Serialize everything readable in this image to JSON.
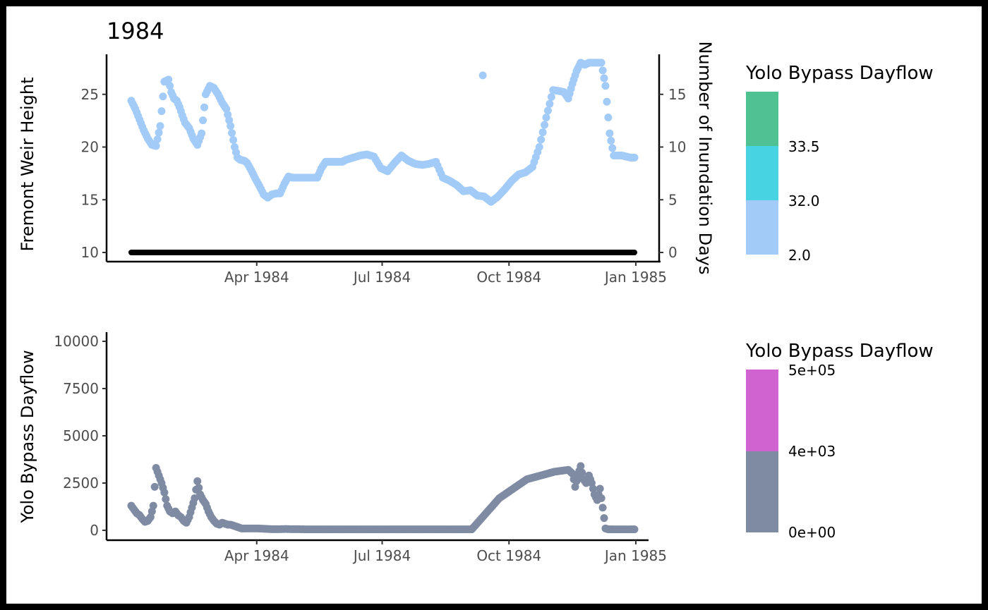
{
  "title": "1984",
  "chart_data": [
    {
      "type": "scatter",
      "ylabel": "Fremont Weir Height",
      "y2label": "Number of Inundation Days",
      "xlim": [
        "1984-01-01",
        "1984-12-31"
      ],
      "x_ticks": [
        "Apr 1984",
        "Jul 1984",
        "Oct 1984",
        "Jan 1985"
      ],
      "ylim": [
        10,
        28
      ],
      "y_ticks": [
        "10",
        "15",
        "20",
        "25"
      ],
      "y2lim": [
        0,
        18
      ],
      "y2_ticks": [
        "0",
        "5",
        "10",
        "15"
      ],
      "colors": {
        "points": "#a3cbf7",
        "inundation": "#000000"
      },
      "series": [
        {
          "role": "weir_height",
          "x": [
            "1984-01-01",
            "1984-01-04",
            "1984-01-07",
            "1984-01-10",
            "1984-01-13",
            "1984-01-16",
            "1984-01-19",
            "1984-01-22",
            "1984-01-25",
            "1984-01-28",
            "1984-01-30",
            "1984-02-01",
            "1984-02-03",
            "1984-02-05",
            "1984-02-07",
            "1984-02-09",
            "1984-02-12",
            "1984-02-15",
            "1984-02-18",
            "1984-02-21",
            "1984-02-24",
            "1984-02-27",
            "1984-03-01",
            "1984-03-04",
            "1984-03-07",
            "1984-03-10",
            "1984-03-13",
            "1984-03-16",
            "1984-03-18",
            "1984-03-20",
            "1984-03-23",
            "1984-03-25",
            "1984-03-28",
            "1984-03-31",
            "1984-04-03",
            "1984-04-06",
            "1984-04-09",
            "1984-04-12",
            "1984-04-15",
            "1984-04-18",
            "1984-04-21",
            "1984-04-24",
            "1984-04-27",
            "1984-04-30",
            "1984-05-03",
            "1984-05-06",
            "1984-05-09",
            "1984-05-12",
            "1984-05-15",
            "1984-05-18",
            "1984-05-21",
            "1984-05-24",
            "1984-05-27",
            "1984-05-30",
            "1984-06-02",
            "1984-06-05",
            "1984-06-10",
            "1984-06-15",
            "1984-06-20",
            "1984-06-25",
            "1984-06-30",
            "1984-07-05",
            "1984-07-10",
            "1984-07-15",
            "1984-07-20",
            "1984-07-25",
            "1984-07-30",
            "1984-08-04",
            "1984-08-09",
            "1984-08-14",
            "1984-08-19",
            "1984-08-24",
            "1984-08-29",
            "1984-09-03",
            "1984-09-08",
            "1984-09-13",
            "1984-09-18",
            "1984-09-23",
            "1984-09-28",
            "1984-10-03",
            "1984-10-08",
            "1984-10-13",
            "1984-10-18",
            "1984-10-23",
            "1984-10-28",
            "1984-11-02",
            "1984-11-07",
            "1984-11-10",
            "1984-11-13",
            "1984-11-16",
            "1984-11-19",
            "1984-11-22",
            "1984-11-25",
            "1984-11-28",
            "1984-12-01",
            "1984-12-04",
            "1984-12-07",
            "1984-12-10",
            "1984-12-13",
            "1984-12-16",
            "1984-12-19",
            "1984-12-22",
            "1984-12-25",
            "1984-12-28",
            "1984-12-31"
          ],
          "y": [
            24.4,
            23.6,
            22.6,
            21.6,
            20.8,
            20.2,
            20.1,
            22.0,
            26.2,
            26.4,
            25.2,
            24.6,
            24.4,
            23.8,
            23.0,
            22.3,
            21.8,
            20.8,
            20.2,
            21.3,
            25.0,
            25.8,
            25.6,
            25.0,
            24.2,
            23.6,
            22.0,
            20.0,
            19.0,
            18.8,
            18.7,
            18.5,
            17.8,
            17.0,
            16.3,
            15.5,
            15.2,
            15.5,
            15.6,
            15.6,
            16.5,
            17.2,
            17.1,
            17.1,
            17.1,
            17.1,
            17.1,
            17.1,
            17.1,
            18.0,
            18.6,
            18.6,
            18.6,
            18.6,
            18.6,
            18.8,
            19.0,
            19.2,
            19.3,
            19.1,
            18.0,
            17.7,
            18.5,
            19.2,
            18.7,
            18.4,
            18.3,
            18.4,
            18.6,
            17.1,
            16.8,
            16.4,
            15.8,
            15.9,
            15.4,
            15.3,
            14.8,
            15.3,
            16.0,
            16.8,
            17.4,
            17.6,
            18.1,
            20.0,
            22.8,
            25.4,
            25.3,
            25.2,
            24.6,
            26.0,
            27.2,
            28.0,
            27.8,
            28.0,
            28.0,
            28.0,
            28.0,
            25.8,
            21.3,
            19.2,
            19.2,
            19.2,
            19.1,
            19.0,
            19.0
          ]
        },
        {
          "role": "weir_height_outlier",
          "x": [
            "1984-09-12"
          ],
          "y": [
            26.8
          ]
        },
        {
          "role": "inundation_days",
          "x": [
            "1984-01-01",
            "1984-12-31"
          ],
          "y": [
            0,
            0
          ]
        }
      ],
      "legend": {
        "title": "Yolo Bypass Dayflow",
        "placement": "right",
        "labels": [
          "33.5",
          "32.0",
          "2.0"
        ],
        "colors": [
          "#4fc192",
          "#48d3e3",
          "#a3cbf7"
        ]
      }
    },
    {
      "type": "scatter",
      "ylabel": "Yolo Bypass Dayflow",
      "xlim": [
        "1984-01-01",
        "1984-12-31"
      ],
      "x_ticks": [
        "Apr 1984",
        "Jul 1984",
        "Oct 1984",
        "Jan 1985"
      ],
      "ylim": [
        0,
        10000
      ],
      "y_ticks": [
        "0",
        "2500",
        "5000",
        "7500",
        "10000"
      ],
      "colors": {
        "points": "#7f8ba3"
      },
      "series": [
        {
          "role": "dayflow",
          "x": [
            "1984-01-01",
            "1984-01-03",
            "1984-01-05",
            "1984-01-07",
            "1984-01-09",
            "1984-01-11",
            "1984-01-13",
            "1984-01-15",
            "1984-01-17",
            "1984-01-19",
            "1984-01-21",
            "1984-01-23",
            "1984-01-25",
            "1984-01-27",
            "1984-01-29",
            "1984-01-31",
            "1984-02-02",
            "1984-02-04",
            "1984-02-06",
            "1984-02-08",
            "1984-02-10",
            "1984-02-12",
            "1984-02-14",
            "1984-02-16",
            "1984-02-18",
            "1984-02-20",
            "1984-02-22",
            "1984-02-24",
            "1984-02-26",
            "1984-02-28",
            "1984-03-01",
            "1984-03-03",
            "1984-03-05",
            "1984-03-07",
            "1984-03-09",
            "1984-03-11",
            "1984-03-13",
            "1984-03-15",
            "1984-03-17",
            "1984-03-19",
            "1984-03-21",
            "1984-03-24",
            "1984-03-28",
            "1984-04-02",
            "1984-04-07",
            "1984-04-12",
            "1984-04-17",
            "1984-04-22",
            "1984-04-27",
            "1984-05-02",
            "1984-05-07",
            "1984-05-12",
            "1984-05-17",
            "1984-05-27",
            "1984-06-06",
            "1984-06-16",
            "1984-06-26",
            "1984-07-06",
            "1984-07-26",
            "1984-08-15",
            "1984-09-04",
            "1984-09-24",
            "1984-10-14",
            "1984-11-03",
            "1984-11-13",
            "1984-11-16",
            "1984-11-17",
            "1984-11-18",
            "1984-11-20",
            "1984-11-22",
            "1984-11-24",
            "1984-11-26",
            "1984-11-28",
            "1984-11-30",
            "1984-12-02",
            "1984-12-04",
            "1984-12-06",
            "1984-12-08",
            "1984-12-10",
            "1984-12-12",
            "1984-12-14",
            "1984-12-16",
            "1984-12-20",
            "1984-12-24",
            "1984-12-28",
            "1984-12-31"
          ],
          "y": [
            1300,
            1100,
            900,
            800,
            600,
            450,
            500,
            700,
            1300,
            3300,
            2900,
            2500,
            2000,
            1300,
            1000,
            900,
            1000,
            800,
            700,
            500,
            400,
            700,
            1200,
            1700,
            2600,
            1900,
            1600,
            1400,
            1000,
            700,
            500,
            350,
            300,
            400,
            350,
            300,
            300,
            250,
            200,
            150,
            100,
            100,
            100,
            100,
            80,
            60,
            60,
            70,
            60,
            60,
            50,
            50,
            50,
            50,
            50,
            50,
            50,
            50,
            50,
            50,
            50,
            1700,
            2700,
            3100,
            3200,
            3000,
            2700,
            2300,
            2900,
            3400,
            2700,
            2500,
            2900,
            2500,
            1900,
            1600,
            2200,
            1200,
            100,
            50,
            50,
            50,
            50,
            50,
            50,
            50
          ]
        }
      ],
      "legend": {
        "title": "Yolo Bypass Dayflow",
        "placement": "right",
        "labels": [
          "5e+05",
          "4e+03",
          "0e+00"
        ],
        "colors": [
          "#d063d0",
          "#7f8ba3"
        ]
      }
    }
  ]
}
